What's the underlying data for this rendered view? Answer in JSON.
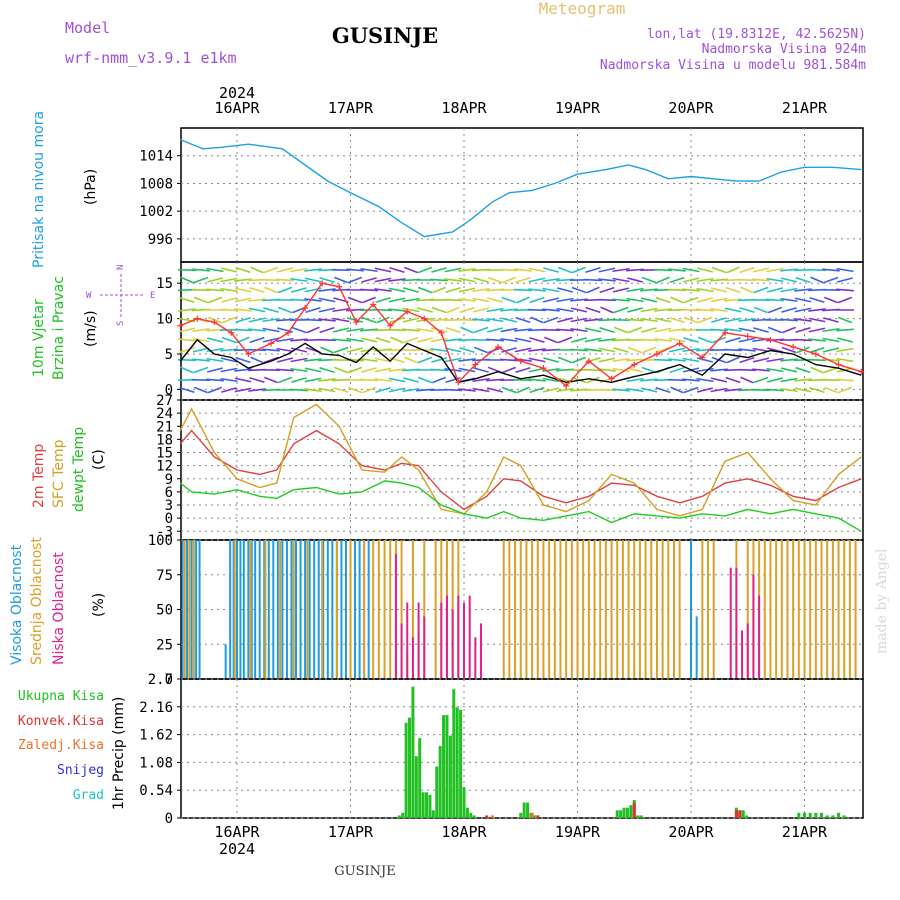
{
  "header": {
    "model_label": "Model",
    "model_name": "wrf-nmm_v3.9.1  e1km",
    "title": "GUSINJE",
    "subtitle": "Meteogram",
    "lonlat": "lon,lat (19.8312E, 42.5625N)",
    "elevation": "Nadmorska Visina 924m",
    "model_elevation": "Nadmorska Visina u modelu 981.584m",
    "footer": "GUSINJE",
    "credit": "made by Angel"
  },
  "chart_data": [
    {
      "type": "line",
      "ylabel": [
        "Pritisak na nivou mora",
        "(hPa)"
      ],
      "ylim": [
        991,
        1020
      ],
      "yticks": [
        996,
        1002,
        1008,
        1014
      ],
      "xtop_labels": [
        "16APR",
        "17APR",
        "18APR",
        "19APR",
        "20APR",
        "21APR"
      ],
      "xtop_year": "2024",
      "series": [
        {
          "color": "#1ea0e6",
          "x": [
            0,
            0.2,
            0.35,
            0.6,
            0.9,
            1.1,
            1.3,
            1.5,
            1.75,
            1.95,
            2.15,
            2.4,
            2.55,
            2.75,
            2.9,
            3.1,
            3.3,
            3.5,
            3.75,
            3.95,
            4.1,
            4.3,
            4.5,
            4.7,
            4.9,
            5.1,
            5.3,
            5.5,
            5.75,
            6.0
          ],
          "values": [
            1017.5,
            1015.5,
            1015.8,
            1016.5,
            1015.5,
            1012,
            1008.5,
            1006,
            1003,
            999.5,
            996.5,
            997.5,
            1000,
            1004,
            1006,
            1006.5,
            1008,
            1010,
            1011,
            1012,
            1011,
            1009,
            1009.5,
            1009,
            1008.5,
            1008.5,
            1010.5,
            1011.5,
            1011.5,
            1011
          ]
        }
      ]
    },
    {
      "type": "line",
      "ylabel": [
        "10m Vjetar",
        "Brzina i Pravac",
        "(m/s)"
      ],
      "direction_key": {
        "n": "N",
        "s": "S",
        "w": "W",
        "e": "E"
      },
      "ylim": [
        -1.5,
        18
      ],
      "yticks": [
        0,
        5,
        10,
        15
      ],
      "series": [
        {
          "color": "#000000",
          "x": [
            0,
            0.15,
            0.3,
            0.45,
            0.6,
            0.8,
            0.95,
            1.1,
            1.25,
            1.4,
            1.55,
            1.7,
            1.85,
            2.0,
            2.15,
            2.3,
            2.45,
            2.6,
            2.8,
            3.0,
            3.2,
            3.4,
            3.6,
            3.8,
            4.0,
            4.2,
            4.4,
            4.6,
            4.8,
            5.0,
            5.2,
            5.4,
            5.6,
            5.8,
            6.0
          ],
          "values": [
            4,
            7,
            5,
            4.5,
            3,
            4,
            5,
            6.5,
            5,
            4.8,
            3.8,
            6,
            4,
            6.5,
            5.5,
            4.5,
            1,
            1.5,
            2.5,
            1.5,
            2,
            1,
            1.5,
            1,
            1.8,
            2.5,
            3.5,
            2,
            5,
            4.5,
            5.5,
            5,
            3.5,
            3,
            2
          ]
        },
        {
          "color": "#ff3333",
          "marker": "+",
          "x": [
            0,
            0.15,
            0.3,
            0.45,
            0.6,
            0.8,
            0.95,
            1.1,
            1.25,
            1.4,
            1.55,
            1.7,
            1.85,
            2.0,
            2.15,
            2.3,
            2.45,
            2.6,
            2.8,
            3.0,
            3.2,
            3.4,
            3.6,
            3.8,
            4.0,
            4.2,
            4.4,
            4.6,
            4.8,
            5.0,
            5.2,
            5.4,
            5.6,
            5.8,
            6.0
          ],
          "values": [
            9,
            10,
            9.5,
            8,
            5,
            6.5,
            8,
            11.5,
            15,
            14.5,
            9.5,
            12,
            9,
            11,
            10,
            8,
            1,
            3.5,
            6,
            4,
            3,
            0.5,
            4,
            1.5,
            3.5,
            5,
            6.5,
            4.5,
            8,
            7.5,
            7,
            6,
            5,
            3.5,
            2.5
          ]
        }
      ]
    },
    {
      "type": "line",
      "ylabel": [
        "2m Temp",
        "SFC Temp",
        "dewpt Temp",
        "(C)"
      ],
      "ylim": [
        -5,
        27
      ],
      "yticks": [
        -3,
        0,
        3,
        6,
        9,
        12,
        15,
        18,
        21,
        24,
        27
      ],
      "series": [
        {
          "name": "2m Temp",
          "color": "#e04040",
          "x": [
            0,
            0.1,
            0.3,
            0.5,
            0.7,
            0.85,
            1.0,
            1.2,
            1.4,
            1.6,
            1.8,
            1.95,
            2.1,
            2.3,
            2.5,
            2.7,
            2.85,
            3.0,
            3.2,
            3.4,
            3.6,
            3.8,
            4.0,
            4.2,
            4.4,
            4.6,
            4.8,
            5.0,
            5.2,
            5.4,
            5.6,
            5.8,
            6.0
          ],
          "values": [
            17,
            20,
            14,
            11,
            10,
            11,
            17,
            20,
            17,
            12,
            11,
            12.5,
            12,
            6,
            2,
            5,
            9,
            8.5,
            5,
            3.5,
            5,
            8,
            7.5,
            5,
            3.5,
            5,
            8,
            9,
            7.5,
            5,
            4,
            7,
            9
          ]
        },
        {
          "name": "SFC Temp",
          "color": "#d4a020",
          "x": [
            0,
            0.1,
            0.3,
            0.5,
            0.7,
            0.85,
            1.0,
            1.2,
            1.4,
            1.6,
            1.8,
            1.95,
            2.1,
            2.3,
            2.5,
            2.7,
            2.85,
            3.0,
            3.2,
            3.4,
            3.6,
            3.8,
            4.0,
            4.2,
            4.4,
            4.6,
            4.8,
            5.0,
            5.2,
            5.4,
            5.6,
            5.8,
            6.0
          ],
          "values": [
            20,
            25,
            15,
            9,
            7,
            8,
            23,
            26,
            21,
            11,
            10.5,
            14,
            11,
            2,
            1,
            6,
            14,
            12,
            3,
            1.5,
            4,
            10,
            8,
            2,
            0.5,
            2,
            13,
            15,
            9,
            4,
            3,
            10,
            14
          ]
        },
        {
          "name": "dewpt Temp",
          "color": "#22cc22",
          "x": [
            0,
            0.1,
            0.3,
            0.5,
            0.7,
            0.85,
            1.0,
            1.2,
            1.4,
            1.6,
            1.8,
            1.95,
            2.1,
            2.3,
            2.5,
            2.7,
            2.85,
            3.0,
            3.2,
            3.4,
            3.6,
            3.8,
            4.0,
            4.2,
            4.4,
            4.6,
            4.8,
            5.0,
            5.2,
            5.4,
            5.6,
            5.8,
            6.0
          ],
          "values": [
            8,
            6,
            5.5,
            6.5,
            5,
            4.5,
            6.5,
            7,
            5.5,
            6,
            8.5,
            8,
            7,
            3,
            1,
            0,
            1.5,
            0,
            -0.5,
            0.5,
            1.5,
            -1,
            1,
            0.5,
            0,
            1,
            0.5,
            2,
            1,
            2,
            1,
            0,
            -3
          ]
        }
      ]
    },
    {
      "type": "bar",
      "ylabel": [
        "Visoka Oblacnost",
        "Srednja Oblacnost",
        "Niska Oblacnost",
        "(%)"
      ],
      "ylim": [
        0,
        100
      ],
      "yticks": [
        0,
        25,
        50,
        75,
        100
      ],
      "series": [
        {
          "name": "Visoka Oblacnost",
          "color": "#1e9be0",
          "x": [
            0.02,
            0.06,
            0.1,
            0.14,
            0.17,
            0.4,
            0.44,
            0.47,
            0.5,
            0.53,
            0.56,
            0.6,
            0.63,
            0.66,
            0.7,
            0.74,
            0.78,
            0.82,
            0.86,
            0.9,
            0.94,
            0.98,
            1.02,
            1.06,
            1.1,
            1.14,
            1.18,
            1.22,
            1.26,
            1.3,
            1.34,
            1.38,
            1.42,
            1.46,
            1.5,
            1.54,
            1.58,
            1.62,
            1.66,
            4.5,
            4.55
          ],
          "values": [
            100,
            100,
            100,
            100,
            100,
            25,
            100,
            100,
            100,
            100,
            100,
            100,
            100,
            100,
            100,
            100,
            100,
            100,
            100,
            100,
            100,
            100,
            100,
            100,
            100,
            100,
            100,
            100,
            100,
            100,
            100,
            100,
            100,
            100,
            100,
            100,
            100,
            100,
            100,
            100,
            45
          ]
        },
        {
          "name": "Srednja Oblacnost",
          "color": "#dca028",
          "x": [
            0.0,
            0.04,
            0.08,
            0.12,
            0.48,
            0.62,
            0.75,
            0.88,
            1.0,
            1.12,
            1.25,
            1.38,
            1.5,
            1.62,
            1.7,
            1.75,
            1.8,
            1.85,
            1.9,
            1.95,
            2.0,
            2.05,
            2.1,
            2.15,
            2.25,
            2.3,
            2.35,
            2.4,
            2.45,
            2.85,
            2.9,
            2.95,
            3.0,
            3.05,
            3.1,
            3.15,
            3.2,
            3.25,
            3.3,
            3.35,
            3.4,
            3.45,
            3.5,
            3.55,
            3.6,
            3.65,
            3.7,
            3.75,
            3.8,
            3.85,
            3.9,
            3.95,
            4.0,
            4.05,
            4.1,
            4.15,
            4.2,
            4.25,
            4.3,
            4.35,
            4.4,
            4.6,
            4.65,
            4.7,
            4.9,
            5.0,
            5.05,
            5.1,
            5.15,
            5.2,
            5.25,
            5.3,
            5.35,
            5.4,
            5.45,
            5.5,
            5.55,
            5.6,
            5.65,
            5.7,
            5.75,
            5.8,
            5.85,
            5.9,
            5.95
          ],
          "values": [
            100,
            100,
            100,
            100,
            100,
            100,
            100,
            100,
            100,
            100,
            100,
            100,
            100,
            100,
            100,
            100,
            100,
            100,
            100,
            100,
            20,
            100,
            35,
            100,
            100,
            100,
            100,
            100,
            100,
            100,
            100,
            100,
            100,
            100,
            100,
            100,
            100,
            100,
            100,
            100,
            100,
            100,
            100,
            100,
            100,
            100,
            100,
            100,
            100,
            100,
            100,
            100,
            100,
            100,
            100,
            100,
            100,
            100,
            100,
            100,
            100,
            100,
            100,
            100,
            100,
            100,
            100,
            100,
            100,
            100,
            100,
            100,
            100,
            100,
            100,
            100,
            100,
            100,
            100,
            100,
            100,
            100,
            100,
            100,
            100
          ]
        },
        {
          "name": "Niska Oblacnost",
          "color": "#e0208c",
          "x": [
            1.9,
            1.95,
            2.0,
            2.05,
            2.1,
            2.15,
            2.3,
            2.35,
            2.4,
            2.45,
            2.5,
            2.55,
            2.6,
            2.65,
            4.85,
            4.9,
            4.95,
            5.0,
            5.05,
            5.1
          ],
          "values": [
            90,
            40,
            55,
            30,
            55,
            45,
            55,
            60,
            50,
            60,
            55,
            60,
            30,
            40,
            80,
            80,
            35,
            40,
            75,
            60
          ]
        }
      ]
    },
    {
      "type": "bar",
      "ylabel": [
        "1hr Precip (mm)"
      ],
      "legend": [
        "Ukupna Kisa",
        "Konvek.Kisa",
        "Zaledj.Kisa",
        "Snijeg",
        "Grad"
      ],
      "legend_colors": [
        "#22c022",
        "#e03030",
        "#f07028",
        "#3030e0",
        "#20c0c0"
      ],
      "ylim": [
        0,
        2.7
      ],
      "yticks": [
        0,
        0.54,
        1.08,
        1.62,
        2.16,
        2.7
      ],
      "xbottom_labels": [
        "16APR",
        "17APR",
        "18APR",
        "19APR",
        "20APR",
        "21APR"
      ],
      "xbottom_year": "2024",
      "series": [
        {
          "name": "Ukupna Kisa",
          "color": "#22c022",
          "x": [
            1.93,
            1.96,
            1.99,
            2.02,
            2.05,
            2.08,
            2.11,
            2.14,
            2.17,
            2.2,
            2.23,
            2.26,
            2.29,
            2.32,
            2.35,
            2.38,
            2.41,
            2.44,
            2.47,
            2.5,
            2.53,
            2.56,
            2.59,
            3.0,
            3.03,
            3.06,
            3.09,
            3.12,
            3.15,
            3.85,
            3.88,
            3.91,
            3.94,
            3.97,
            4.0,
            4.03,
            4.06,
            4.9,
            4.93,
            4.96,
            4.99,
            5.45,
            5.5,
            5.55,
            5.6,
            5.65,
            5.7,
            5.75,
            5.8,
            5.85
          ],
          "values": [
            0.05,
            0.1,
            1.85,
            1.95,
            2.55,
            1.2,
            1.55,
            0.5,
            0.5,
            0.45,
            0.15,
            1.0,
            1.4,
            2.0,
            2.0,
            1.6,
            2.5,
            2.15,
            2.1,
            0.6,
            0.2,
            0.1,
            0.05,
            0.1,
            0.3,
            0.3,
            0.1,
            0.05,
            0.05,
            0.15,
            0.15,
            0.2,
            0.2,
            0.25,
            0.35,
            0.05,
            0.05,
            0.2,
            0.15,
            0.15,
            0.05,
            0.1,
            0.1,
            0.1,
            0.1,
            0.1,
            0.05,
            0.05,
            0.1,
            0.05
          ]
        },
        {
          "name": "Konvek.Kisa",
          "color": "#e03030",
          "x": [
            2.7,
            3.15,
            4.0,
            4.9,
            4.93
          ],
          "values": [
            0.05,
            0.05,
            0.3,
            0.15,
            0.15
          ]
        },
        {
          "name": "Zaledj.Kisa",
          "color": "#f07028",
          "x": [
            2.75,
            3.1
          ],
          "values": [
            0.05,
            0.1
          ]
        }
      ]
    }
  ]
}
